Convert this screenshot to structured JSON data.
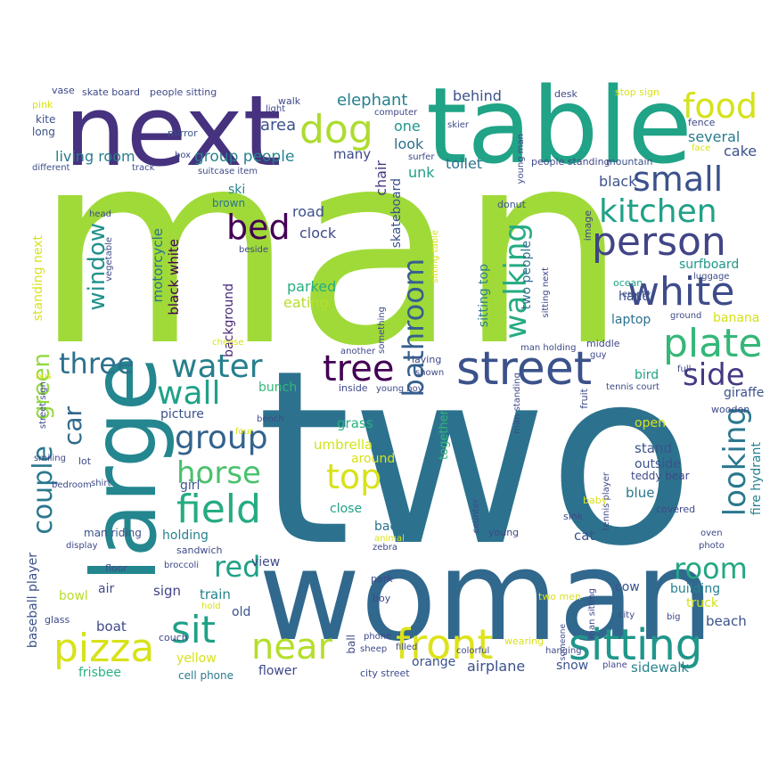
{
  "palette": [
    "#440154",
    "#46327e",
    "#365c8d",
    "#277f8e",
    "#1fa187",
    "#4ac16d",
    "#a0da39",
    "#fde725"
  ],
  "words": {
    "man": "man",
    "two": "two",
    "woman": "woman",
    "table": "table",
    "next": "next",
    "large": "large",
    "street": "street",
    "sitting": "sitting",
    "person": "person",
    "white": "white",
    "plate": "plate",
    "tree": "tree",
    "front": "front",
    "pizza": "pizza",
    "sit": "sit",
    "near": "near",
    "field": "field",
    "horse": "horse",
    "group": "group",
    "three": "three",
    "water": "water",
    "wall": "wall",
    "bed": "bed",
    "dog": "dog",
    "food": "food",
    "small": "small",
    "kitchen": "kitchen",
    "window": "window",
    "bathroom": "bathroom",
    "walking": "walking",
    "side": "side",
    "looking": "looking",
    "room": "room",
    "top": "top",
    "red": "red",
    "couple": "couple",
    "green": "green",
    "car": "car",
    "elephant": "elephant",
    "area": "area",
    "one": "one",
    "look": "look",
    "behind": "behind",
    "several": "several",
    "cake": "cake",
    "many": "many",
    "group_people": "group people",
    "living_room": "living room",
    "toilet": "toilet",
    "black": "black",
    "chair": "chair",
    "skateboard": "skateboard",
    "road": "road",
    "clock": "clock",
    "parked": "parked",
    "eating": "eating",
    "motorcycle": "motorcycle",
    "black_white": "black white",
    "background": "background",
    "ski": "ski",
    "brown": "brown",
    "laptop": "laptop",
    "hand": "hand",
    "surfboard": "surfboard",
    "banana": "banana",
    "sitting_top": "sitting top",
    "two_people": "two people",
    "standing_next": "standing next",
    "bunch": "bunch",
    "picture": "picture",
    "grass": "grass",
    "umbrella": "umbrella",
    "around": "around",
    "together": "together",
    "close": "close",
    "back": "back",
    "view": "view",
    "holding": "holding",
    "girl": "girl",
    "sign": "sign",
    "train": "train",
    "old": "old",
    "boat": "boat",
    "yellow": "yellow",
    "flower": "flower",
    "frisbee": "frisbee",
    "cell_phone": "cell phone",
    "bowl": "bowl",
    "air": "air",
    "orange": "orange",
    "airplane": "airplane",
    "snow": "snow",
    "sidewalk": "sidewalk",
    "beach": "beach",
    "truck": "truck",
    "building": "building",
    "cow": "cow",
    "cat": "cat",
    "blue": "blue",
    "stand": "stand",
    "outside": "outside",
    "open": "open",
    "fire_hydrant": "fire hydrant",
    "giraffe": "giraffe",
    "wooden": "wooden",
    "teddy_bear": "teddy bear",
    "covered": "covered",
    "baseball_player": "baseball player",
    "man_riding": "man riding",
    "sandwich": "sandwich",
    "broccoli": "broccoli",
    "floor": "floor",
    "glass": "glass",
    "couch": "couch",
    "hold": "hold",
    "bench": "bench",
    "four": "four",
    "shirt": "shirt",
    "lot": "lot",
    "smiling": "smiling",
    "bedroom": "bedroom",
    "display": "display",
    "zebra": "zebra",
    "park": "park",
    "boy": "boy",
    "phone": "phone",
    "sheep": "sheep",
    "city_street": "city street",
    "colorful": "colorful",
    "filled": "filled",
    "ball": "ball",
    "wearing": "wearing",
    "counter": "counter",
    "young": "young",
    "animal": "animal",
    "shown": "shown",
    "inside": "inside",
    "young_boy": "young boy",
    "man_standing": "man standing",
    "man_holding": "man holding",
    "laying": "laying",
    "another": "another",
    "cheese": "cheese",
    "something": "something",
    "sitting_next": "sitting next",
    "sitting_table": "sitting table",
    "donut": "donut",
    "people_standing": "people standing",
    "young_man": "young man",
    "surfer": "surfer",
    "computer": "computer",
    "skier": "skier",
    "suitcase_item": "suitcase item",
    "box": "box",
    "mirror": "mirror",
    "light": "light",
    "walk": "walk",
    "skate_board": "skate board",
    "people_sitting": "people sitting",
    "vase": "vase",
    "pink": "pink",
    "kite": "kite",
    "long": "long",
    "different": "different",
    "track": "track",
    "head": "head",
    "vegetable": "vegetable",
    "beside": "beside",
    "desk": "desk",
    "stop_sign": "stop sign",
    "fence": "fence",
    "face": "face",
    "mountain": "mountain",
    "image": "image",
    "luggage": "luggage",
    "ocean": "ocean",
    "empty": "empty",
    "ground": "ground",
    "middle": "middle",
    "guy": "guy",
    "full": "full",
    "tennis_court": "tennis court",
    "fruit": "fruit",
    "tennis_player": "tennis player",
    "man_sitting": "man sitting",
    "city": "city",
    "big": "big",
    "two_men": "two men",
    "baby": "baby",
    "sink": "sink",
    "oven": "oven",
    "photo": "photo",
    "plane": "plane",
    "bird": "bird",
    "bus": "bus",
    "street_sign": "street sign",
    "someone": "someone",
    "hanging": "hanging",
    "item": "item",
    "unk": "unk"
  }
}
